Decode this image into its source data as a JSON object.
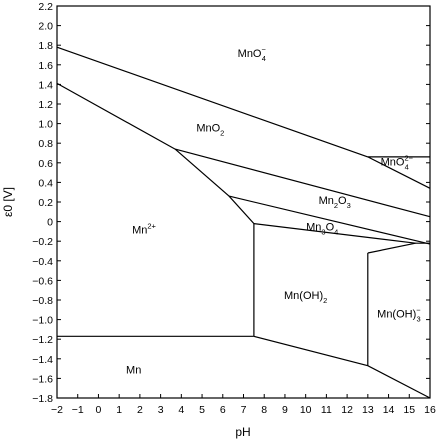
{
  "chart_data": {
    "type": "line",
    "title": "",
    "xlabel": "pH",
    "ylabel": "ε0 [V]",
    "xlim": [
      -2,
      16
    ],
    "ylim": [
      -1.8,
      2.2
    ],
    "grid": false,
    "x_ticks": [
      -2,
      -1,
      0,
      1,
      2,
      3,
      4,
      5,
      6,
      7,
      8,
      9,
      10,
      11,
      12,
      13,
      14,
      15,
      16
    ],
    "y_ticks": [
      -1.8,
      -1.6,
      -1.4,
      -1.2,
      -1.0,
      -0.8,
      -0.6,
      -0.4,
      -0.2,
      0,
      0.2,
      0.4,
      0.6,
      0.8,
      1.0,
      1.2,
      1.4,
      1.6,
      1.8,
      2.0,
      2.2
    ],
    "x_tick_labels": [
      "−2",
      "−1",
      "0",
      "1",
      "2",
      "3",
      "4",
      "5",
      "6",
      "7",
      "8",
      "9",
      "10",
      "11",
      "12",
      "13",
      "14",
      "15",
      "16"
    ],
    "y_tick_labels": [
      "−1.8",
      "−1.6",
      "−1.4",
      "−1.2",
      "−1.0",
      "−0.8",
      "−0.6",
      "−0.4",
      "−0.2",
      "0",
      "0.2",
      "0.4",
      "0.6",
      "0.8",
      "1.0",
      "1.2",
      "1.4",
      "1.6",
      "1.8",
      "2.0",
      "2.2"
    ],
    "boundaries": [
      {
        "points": [
          [
            -2,
            1.78
          ],
          [
            13.0,
            0.66
          ],
          [
            16,
            0.34
          ]
        ]
      },
      {
        "points": [
          [
            13.0,
            0.66
          ],
          [
            16,
            0.66
          ]
        ]
      },
      {
        "points": [
          [
            -2,
            1.41
          ],
          [
            3.7,
            0.74
          ]
        ]
      },
      {
        "points": [
          [
            3.7,
            0.74
          ],
          [
            16,
            0.05
          ]
        ]
      },
      {
        "points": [
          [
            3.7,
            0.74
          ],
          [
            6.3,
            0.26
          ],
          [
            7.5,
            -0.02
          ],
          [
            7.5,
            -1.17
          ]
        ]
      },
      {
        "points": [
          [
            6.3,
            0.26
          ],
          [
            16,
            -0.23
          ]
        ]
      },
      {
        "points": [
          [
            7.5,
            -0.02
          ],
          [
            15.3,
            -0.22
          ],
          [
            16,
            -0.22
          ]
        ]
      },
      {
        "points": [
          [
            7.5,
            -1.17
          ],
          [
            -2,
            -1.17
          ]
        ]
      },
      {
        "points": [
          [
            7.5,
            -1.17
          ],
          [
            13.0,
            -1.47
          ],
          [
            16,
            -1.8
          ]
        ]
      },
      {
        "points": [
          [
            13.0,
            -0.32
          ],
          [
            15.3,
            -0.22
          ]
        ]
      },
      {
        "points": [
          [
            13.0,
            -0.32
          ],
          [
            13.0,
            -1.47
          ]
        ]
      }
    ],
    "regions": [
      {
        "main": "MnO",
        "sub": "4",
        "sup": "−",
        "x": 7.4,
        "y": 1.68
      },
      {
        "main": "MnO",
        "sub": "4",
        "sup": "2−",
        "x": 14.4,
        "y": 0.57
      },
      {
        "main": "MnO",
        "sub": "2",
        "sup": "",
        "x": 5.4,
        "y": 0.92
      },
      {
        "main": "Mn",
        "sub": "2",
        "sup": "",
        "x": 11.4,
        "y": 0.18,
        "tail": "O",
        "tail_sub": "3"
      },
      {
        "main": "Mn",
        "sub": "3",
        "sup": "",
        "x": 10.8,
        "y": -0.09,
        "tail": "O",
        "tail_sub": "4"
      },
      {
        "main": "Mn",
        "sub": "",
        "sup": "2+",
        "x": 2.2,
        "y": -0.12
      },
      {
        "main": "Mn(OH)",
        "sub": "2",
        "sup": "",
        "x": 10.0,
        "y": -0.79
      },
      {
        "main": "Mn(OH)",
        "sub": "3",
        "sup": "−",
        "x": 14.5,
        "y": -0.98
      },
      {
        "main": "Mn",
        "sub": "",
        "sup": "",
        "x": 1.7,
        "y": -1.55
      }
    ]
  }
}
